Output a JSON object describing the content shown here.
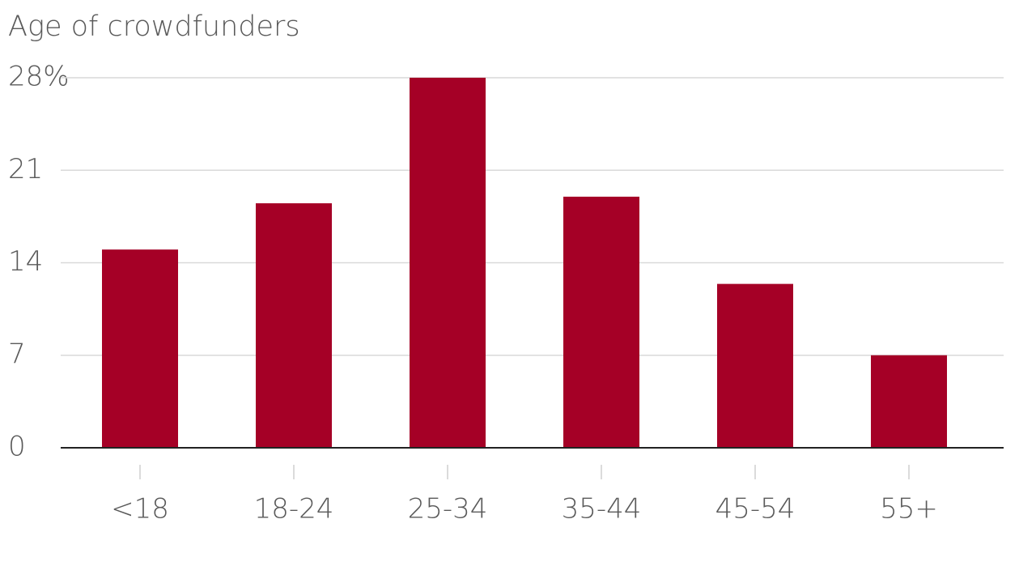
{
  "chart_data": {
    "type": "bar",
    "title": "Age of crowdfunders",
    "categories": [
      "<18",
      "18-24",
      "25-34",
      "35-44",
      "45-54",
      "55+"
    ],
    "values": [
      15,
      18.5,
      28,
      19,
      12.4,
      7
    ],
    "color": "#a50026",
    "ylim": [
      0,
      28
    ],
    "yticks": [
      0,
      7,
      14,
      21,
      {
        "value": 28,
        "label": "28%"
      }
    ],
    "grid": true
  }
}
